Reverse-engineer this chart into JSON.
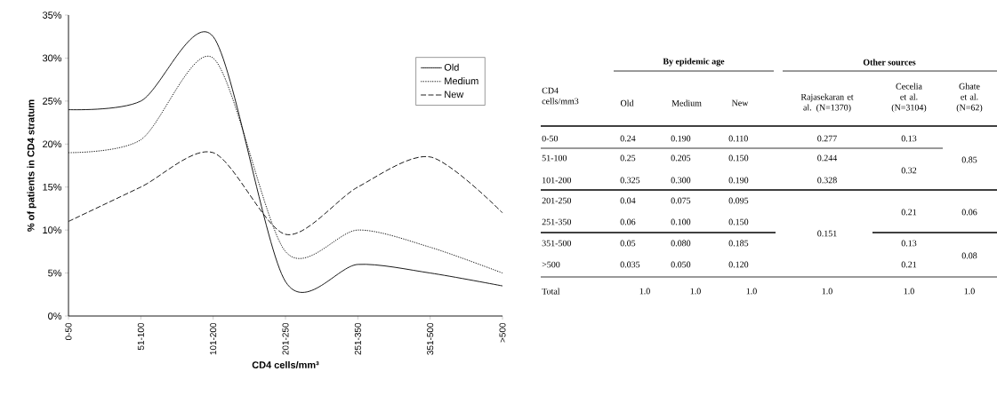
{
  "chart_data": [
    {
      "type": "line",
      "xlabel": "CD4 cells/mm³",
      "ylabel": "% of patients in CD4 stratum",
      "categories": [
        "0-50",
        "51-100",
        "101-200",
        "201-250",
        "251-350",
        "351-500",
        ">500"
      ],
      "series": [
        {
          "name": "Old",
          "color": "#000000",
          "line_style": "solid",
          "values": [
            24,
            25,
            32.5,
            4,
            6,
            5,
            3.5
          ]
        },
        {
          "name": "Medium",
          "color": "#000000",
          "line_style": "dotted",
          "values": [
            19,
            20.5,
            30,
            7.5,
            10,
            8,
            5
          ]
        },
        {
          "name": "New",
          "color": "#000000",
          "line_style": "dashed",
          "values": [
            11,
            15,
            19,
            9.5,
            15,
            18.5,
            12
          ]
        }
      ],
      "ylim": [
        0,
        35
      ],
      "yticks": [
        {
          "value": 0,
          "label": "0%"
        },
        {
          "value": 5,
          "label": "5%"
        },
        {
          "value": 10,
          "label": "10%"
        },
        {
          "value": 15,
          "label": "15%"
        },
        {
          "value": 20,
          "label": "20%"
        },
        {
          "value": 25,
          "label": "25%"
        },
        {
          "value": 30,
          "label": "30%"
        },
        {
          "value": 35,
          "label": "35%"
        }
      ],
      "legend": "top right"
    },
    {
      "type": "other",
      "annotations": [
        "By epidemic age",
        "Other sources",
        "CD4 cells/mm3",
        "Old",
        "Medium",
        "New",
        "Rajasekaran et al. (N=1370)",
        "Cecelia et al. (N=3104)",
        "Ghate et al. (N=62)",
        "0-50",
        "0.24",
        "0.190",
        "0.110",
        "0.277",
        "0.13",
        "0.85",
        "51-100",
        "0.25",
        "0.205",
        "0.150",
        "0.244",
        "0.32",
        "101-200",
        "0.325",
        "0.300",
        "0.190",
        "0.328",
        "201-250",
        "0.04",
        "0.075",
        "0.095",
        "0.151",
        "0.21",
        "0.06",
        "251-350",
        "0.06",
        "0.100",
        "0.150",
        "351-500",
        "0.05",
        "0.080",
        "0.185",
        "0.13",
        "0.08",
        ">500",
        "0.035",
        "0.050",
        "0.120",
        "0.21",
        "Total",
        "1.0",
        "1.0",
        "1.0",
        "1.0",
        "1.0",
        "1.0"
      ]
    }
  ]
}
